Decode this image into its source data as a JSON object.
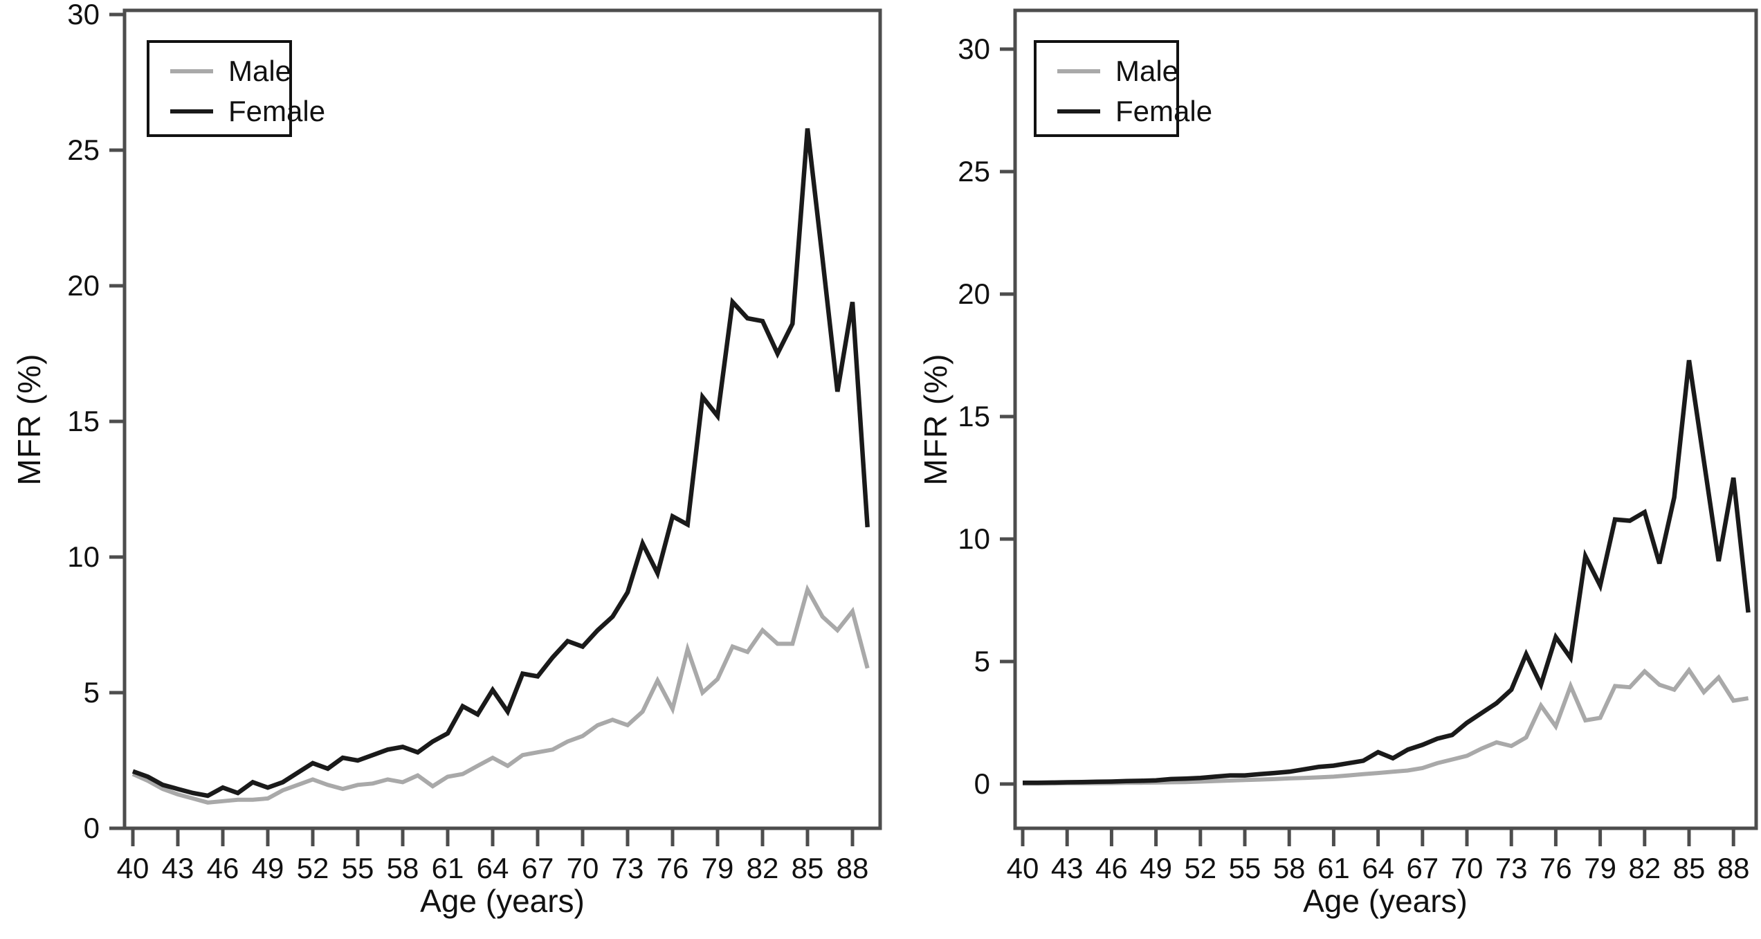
{
  "figure": {
    "background": "#ffffff",
    "frame_color": "#4d4d4d",
    "text_color": "#111111"
  },
  "chart_data": [
    {
      "type": "line",
      "title": "",
      "xlabel": "Age (years)",
      "ylabel": "MFR (%)",
      "grid": false,
      "legend_position": "upper-left",
      "xlim": [
        40,
        89.85
      ],
      "ylim": [
        0,
        30.15
      ],
      "x_tick_labels": [
        40,
        43,
        46,
        49,
        52,
        55,
        58,
        61,
        64,
        67,
        70,
        73,
        76,
        79,
        82,
        85,
        88
      ],
      "y_tick_labels": [
        0,
        5,
        10,
        15,
        20,
        25,
        30
      ],
      "x": [
        40,
        41,
        42,
        43,
        44,
        45,
        46,
        47,
        48,
        49,
        50,
        51,
        52,
        53,
        54,
        55,
        56,
        57,
        58,
        59,
        60,
        61,
        62,
        63,
        64,
        65,
        66,
        67,
        68,
        69,
        70,
        71,
        72,
        73,
        74,
        75,
        76,
        77,
        78,
        79,
        80,
        81,
        82,
        83,
        84,
        85,
        86,
        87,
        88,
        89
      ],
      "series": [
        {
          "name": "Male",
          "color": "#a9a9a9",
          "values": [
            2.0,
            1.75,
            1.45,
            1.25,
            1.1,
            0.95,
            1.0,
            1.05,
            1.05,
            1.1,
            1.4,
            1.6,
            1.8,
            1.6,
            1.45,
            1.6,
            1.65,
            1.8,
            1.7,
            1.95,
            1.55,
            1.9,
            2.0,
            2.3,
            2.6,
            2.3,
            2.7,
            2.8,
            2.9,
            3.2,
            3.4,
            3.8,
            4.0,
            3.8,
            4.3,
            5.45,
            4.4,
            6.6,
            5.0,
            5.5,
            6.7,
            6.5,
            7.3,
            6.8,
            6.8,
            8.8,
            7.8,
            7.3,
            8.0,
            5.9
          ]
        },
        {
          "name": "Female",
          "color": "#1a1a1a",
          "values": [
            2.1,
            1.9,
            1.6,
            1.45,
            1.3,
            1.2,
            1.5,
            1.3,
            1.7,
            1.5,
            1.7,
            2.05,
            2.4,
            2.2,
            2.6,
            2.5,
            2.7,
            2.9,
            3.0,
            2.8,
            3.2,
            3.5,
            4.5,
            4.2,
            5.1,
            4.3,
            5.7,
            5.6,
            6.3,
            6.9,
            6.7,
            7.3,
            7.8,
            8.7,
            10.5,
            9.4,
            11.5,
            11.2,
            15.9,
            15.2,
            19.4,
            18.8,
            18.7,
            17.5,
            18.6,
            25.8,
            21.0,
            16.1,
            19.4,
            11.1
          ]
        }
      ]
    },
    {
      "type": "line",
      "title": "",
      "xlabel": "Age (years)",
      "ylabel": "MFR (%)",
      "grid": false,
      "legend_position": "upper-left",
      "xlim": [
        40,
        89.8
      ],
      "ylim": [
        -1.8,
        31.6
      ],
      "x_tick_labels": [
        40,
        43,
        46,
        49,
        52,
        55,
        58,
        61,
        64,
        67,
        70,
        73,
        76,
        79,
        82,
        85,
        88
      ],
      "y_tick_labels": [
        0,
        5,
        10,
        15,
        20,
        25,
        30
      ],
      "x": [
        40,
        41,
        42,
        43,
        44,
        45,
        46,
        47,
        48,
        49,
        50,
        51,
        52,
        53,
        54,
        55,
        56,
        57,
        58,
        59,
        60,
        61,
        62,
        63,
        64,
        65,
        66,
        67,
        68,
        69,
        70,
        71,
        72,
        73,
        74,
        75,
        76,
        77,
        78,
        79,
        80,
        81,
        82,
        83,
        84,
        85,
        86,
        87,
        88,
        89
      ],
      "series": [
        {
          "name": "Male",
          "color": "#a9a9a9",
          "values": [
            0.02,
            0.02,
            0.02,
            0.03,
            0.03,
            0.03,
            0.04,
            0.05,
            0.05,
            0.06,
            0.07,
            0.08,
            0.1,
            0.12,
            0.14,
            0.16,
            0.18,
            0.2,
            0.23,
            0.25,
            0.27,
            0.3,
            0.35,
            0.4,
            0.45,
            0.5,
            0.55,
            0.65,
            0.85,
            1.0,
            1.15,
            1.45,
            1.7,
            1.55,
            1.9,
            3.2,
            2.35,
            4.0,
            2.6,
            2.7,
            4.0,
            3.95,
            4.6,
            4.05,
            3.85,
            4.65,
            3.75,
            4.35,
            3.4,
            3.5
          ]
        },
        {
          "name": "Female",
          "color": "#1a1a1a",
          "values": [
            0.05,
            0.05,
            0.06,
            0.07,
            0.08,
            0.09,
            0.1,
            0.12,
            0.13,
            0.15,
            0.2,
            0.22,
            0.25,
            0.3,
            0.35,
            0.35,
            0.4,
            0.45,
            0.5,
            0.6,
            0.7,
            0.75,
            0.85,
            0.95,
            1.3,
            1.05,
            1.4,
            1.6,
            1.85,
            2.0,
            2.5,
            2.9,
            3.3,
            3.85,
            5.3,
            4.05,
            6.0,
            5.15,
            9.3,
            8.1,
            10.8,
            10.75,
            11.1,
            9.0,
            11.7,
            17.3,
            13.2,
            9.1,
            12.5,
            7.0
          ]
        }
      ]
    }
  ]
}
